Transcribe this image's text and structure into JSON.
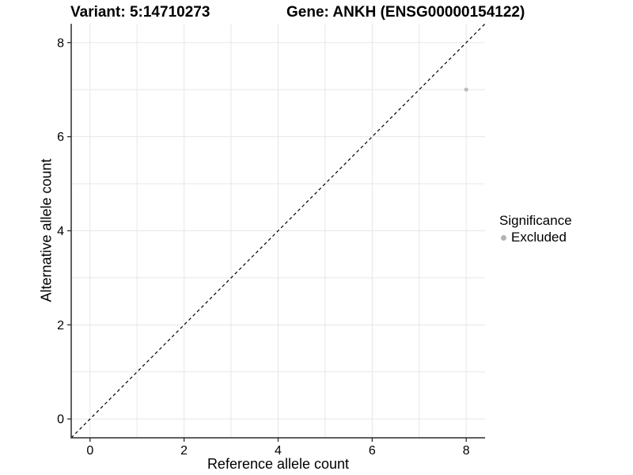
{
  "chart_data": {
    "type": "scatter",
    "title_left": "Variant: 5:14710273",
    "title_right": "Gene: ANKH (ENSG00000154122)",
    "xlabel": "Reference allele count",
    "ylabel": "Alternative allele count",
    "xlim": [
      -0.4,
      8.4
    ],
    "ylim": [
      -0.4,
      8.4
    ],
    "x_ticks": [
      0,
      2,
      4,
      6,
      8
    ],
    "y_ticks": [
      0,
      2,
      4,
      6,
      8
    ],
    "x_grid": [
      0,
      1,
      2,
      3,
      4,
      5,
      6,
      7,
      8
    ],
    "y_grid": [
      0,
      1,
      2,
      3,
      4,
      5,
      6,
      7,
      8
    ],
    "grid": true,
    "points": [
      {
        "x": 8,
        "y": 7,
        "significance": "Excluded"
      }
    ],
    "identity_line": {
      "slope": 1,
      "intercept": 0,
      "style": "dashed"
    },
    "legend": {
      "title": "Significance",
      "position": "right",
      "entries": [
        {
          "label": "Excluded",
          "color": "#b3b3b3"
        }
      ]
    },
    "colors": {
      "point": "#bdbdbd",
      "grid": "#e7e7e7",
      "axis": "#2b2b2b",
      "line": "#000000",
      "text": "#000000"
    }
  }
}
